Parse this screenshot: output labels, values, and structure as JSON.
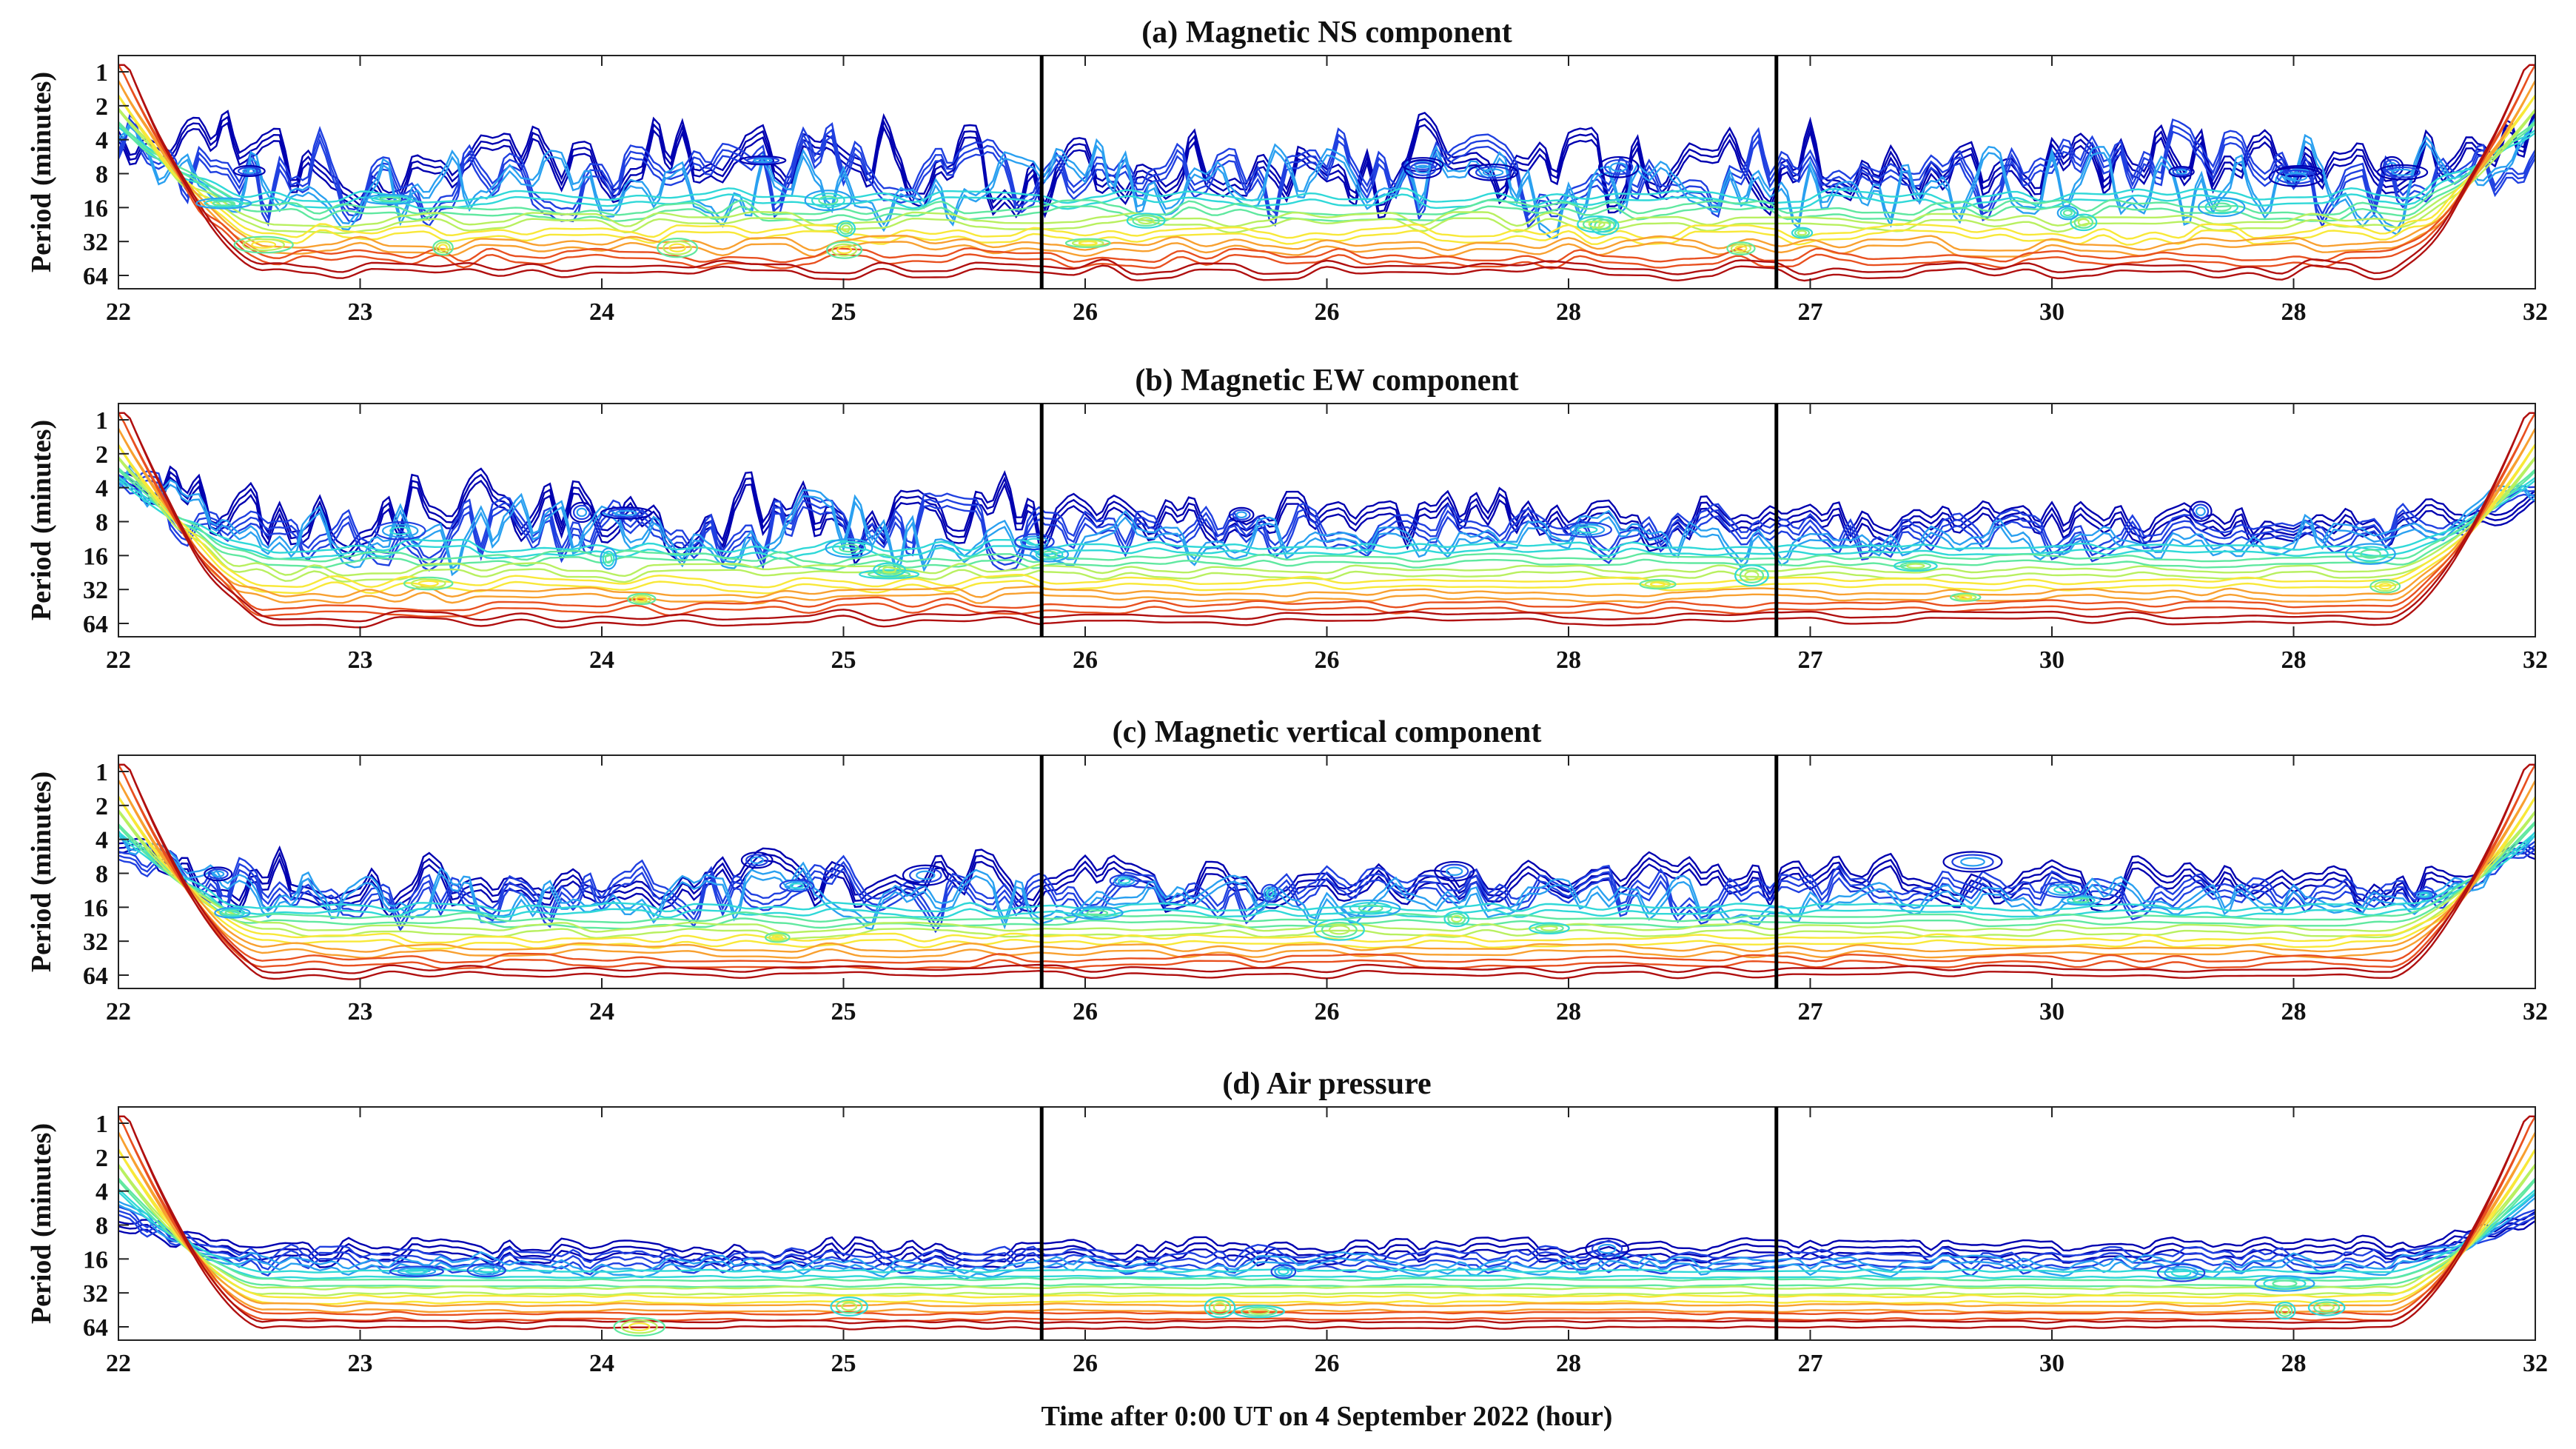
{
  "chart_data": {
    "type": "contour",
    "description_of_axes": {
      "x_tick_labels": [
        "22",
        "23",
        "24",
        "25",
        "26",
        "26",
        "28",
        "27",
        "30",
        "28",
        "32"
      ],
      "y_tick_labels": [
        "1",
        "2",
        "4",
        "8",
        "16",
        "32",
        "64"
      ],
      "y_scale": "log2",
      "ylabel": "Period (minutes)",
      "xlabel": "Time after 0:00 UT on 4 September 2022 (hour)",
      "divider_positions_fraction": [
        0.382,
        0.686
      ]
    },
    "colormap": [
      "#0000b0",
      "#2040e0",
      "#2aa0f0",
      "#30d8d8",
      "#60e8a0",
      "#b8f060",
      "#f8e838",
      "#f8a030",
      "#e85020",
      "#b01010"
    ],
    "panels": [
      {
        "title": "(a) Magnetic NS component",
        "contour_structure": "dense blue high-frequency activity at periods 2–16 min; cyan/green band near 16 min; yellow/orange 16–32 min; red 32–64 min; strong cone of influence rising at both edges"
      },
      {
        "title": "(b) Magnetic EW component",
        "contour_structure": "blue activity at periods 1–16 min in first segment, weaker after divider; cyan band 16–32 min; yellow-orange band near 32–64 min; red near 64 min"
      },
      {
        "title": "(c) Magnetic vertical component",
        "contour_structure": "blue activity at 2–16 min; cyan band 16–32 min; yellow 32–64 min; orange-red near 64 min; cone of influence at both edges"
      },
      {
        "title": "(d) Air pressure",
        "contour_structure": "sparse blue contours at 8–16 min; cyan/green band near 16–32 min; yellow-orange near 32–64 min; red near 64 min; prominent cone of influence at both edges"
      }
    ]
  }
}
